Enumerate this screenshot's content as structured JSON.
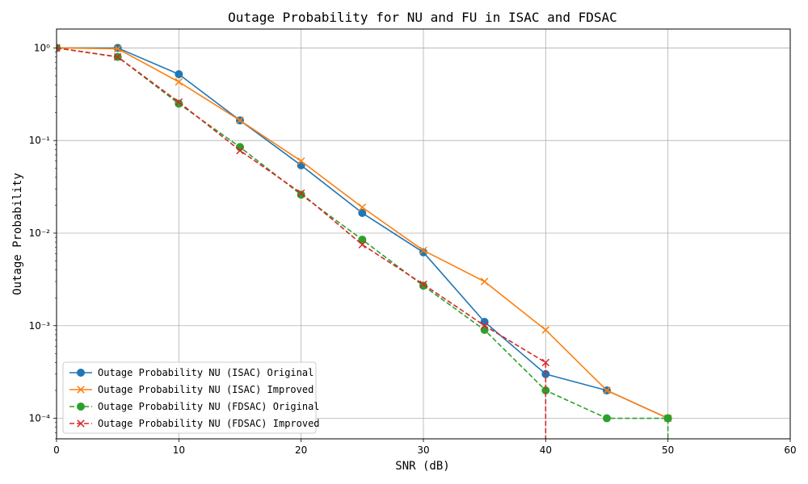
{
  "chart_data": {
    "type": "line",
    "title": "Outage Probability for NU and FU in ISAC and FDSAC",
    "xlabel": "SNR (dB)",
    "ylabel": "Outage Probability",
    "xlim": [
      0,
      60
    ],
    "ylim": [
      6e-05,
      1.6
    ],
    "yscale": "log",
    "grid": true,
    "legend_position": "lower-left",
    "x_ticks": [
      0,
      10,
      20,
      30,
      40,
      50,
      60
    ],
    "x_tick_labels": [
      "0",
      "10",
      "20",
      "30",
      "40",
      "50",
      "60"
    ],
    "y_ticks": [
      1,
      0.1,
      0.01,
      0.001,
      0.0001
    ],
    "y_tick_labels": [
      "10⁰",
      "10⁻¹",
      "10⁻²",
      "10⁻³",
      "10⁻⁴"
    ],
    "series": [
      {
        "name": "Outage Probability NU (ISAC) Original",
        "color": "#1f77b4",
        "linestyle": "solid",
        "marker": "circle",
        "x": [
          0,
          5,
          10,
          15,
          20,
          25,
          30,
          35,
          40,
          45,
          50
        ],
        "y": [
          1.0,
          1.0,
          0.52,
          0.165,
          0.054,
          0.0165,
          0.0062,
          0.0011,
          0.0003,
          0.0002,
          0.0001
        ]
      },
      {
        "name": "Outage Probability NU (ISAC) Improved",
        "color": "#ff7f0e",
        "linestyle": "solid",
        "marker": "x",
        "x": [
          0,
          5,
          10,
          15,
          20,
          25,
          30,
          35,
          40,
          45,
          50
        ],
        "y": [
          1.0,
          0.98,
          0.43,
          0.165,
          0.06,
          0.019,
          0.0065,
          0.003,
          0.0009,
          0.0002,
          0.0001
        ]
      },
      {
        "name": "Outage Probability NU (FDSAC) Original",
        "color": "#2ca02c",
        "linestyle": "dashed",
        "marker": "circle",
        "x": [
          0,
          5,
          10,
          15,
          20,
          25,
          30,
          35,
          40,
          45,
          50
        ],
        "y": [
          1.0,
          0.8,
          0.25,
          0.085,
          0.026,
          0.0085,
          0.0027,
          0.0009,
          0.0002,
          0.0001,
          0.0001
        ],
        "drop_after_last": true
      },
      {
        "name": "Outage Probability NU (FDSAC) Improved",
        "color": "#d62728",
        "linestyle": "dashed",
        "marker": "x",
        "x": [
          0,
          5,
          10,
          15,
          20,
          25,
          30,
          35,
          40
        ],
        "y": [
          1.0,
          0.8,
          0.26,
          0.078,
          0.027,
          0.0075,
          0.0028,
          0.001,
          0.0004
        ],
        "drop_after_last": true
      }
    ]
  }
}
